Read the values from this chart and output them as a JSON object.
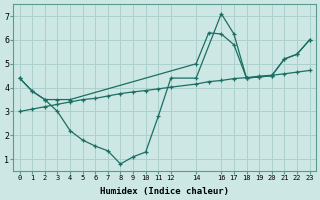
{
  "title": "",
  "xlabel": "Humidex (Indice chaleur)",
  "ylabel": "",
  "bg_color": "#cde8e4",
  "grid_color": "#aed0cc",
  "line_color": "#1a6e64",
  "xlim": [
    -0.5,
    23.5
  ],
  "ylim": [
    0.5,
    7.5
  ],
  "xticks": [
    0,
    1,
    2,
    3,
    4,
    5,
    6,
    7,
    8,
    9,
    10,
    11,
    12,
    14,
    16,
    17,
    18,
    19,
    20,
    21,
    22,
    23
  ],
  "yticks": [
    1,
    2,
    3,
    4,
    5,
    6,
    7
  ],
  "line1_x": [
    0,
    1,
    2,
    3,
    4,
    5,
    6,
    7,
    8,
    9,
    10,
    11,
    12,
    14,
    16,
    17,
    18,
    19,
    20,
    21,
    22,
    23
  ],
  "line1_y": [
    4.4,
    3.85,
    3.5,
    3.0,
    2.2,
    1.8,
    1.55,
    1.35,
    0.8,
    1.1,
    1.3,
    2.8,
    4.4,
    4.4,
    7.1,
    6.25,
    4.4,
    4.45,
    4.5,
    5.2,
    5.4,
    6.0
  ],
  "line2_x": [
    0,
    1,
    2,
    3,
    4,
    5,
    6,
    7,
    8,
    9,
    10,
    11,
    12,
    14,
    15,
    16,
    17,
    18,
    19,
    20,
    21,
    22,
    23
  ],
  "line2_y": [
    3.0,
    3.1,
    3.2,
    3.3,
    3.4,
    3.5,
    3.55,
    3.65,
    3.75,
    3.82,
    3.88,
    3.95,
    4.02,
    4.15,
    4.25,
    4.3,
    4.38,
    4.42,
    4.48,
    4.52,
    4.58,
    4.65,
    4.72
  ],
  "line3_x": [
    0,
    1,
    2,
    3,
    4,
    14,
    15,
    16,
    17,
    18,
    19,
    20,
    21,
    22,
    23
  ],
  "line3_y": [
    4.4,
    3.85,
    3.5,
    3.5,
    3.5,
    5.0,
    6.3,
    6.25,
    5.8,
    4.4,
    4.45,
    4.5,
    5.2,
    5.4,
    6.0
  ]
}
